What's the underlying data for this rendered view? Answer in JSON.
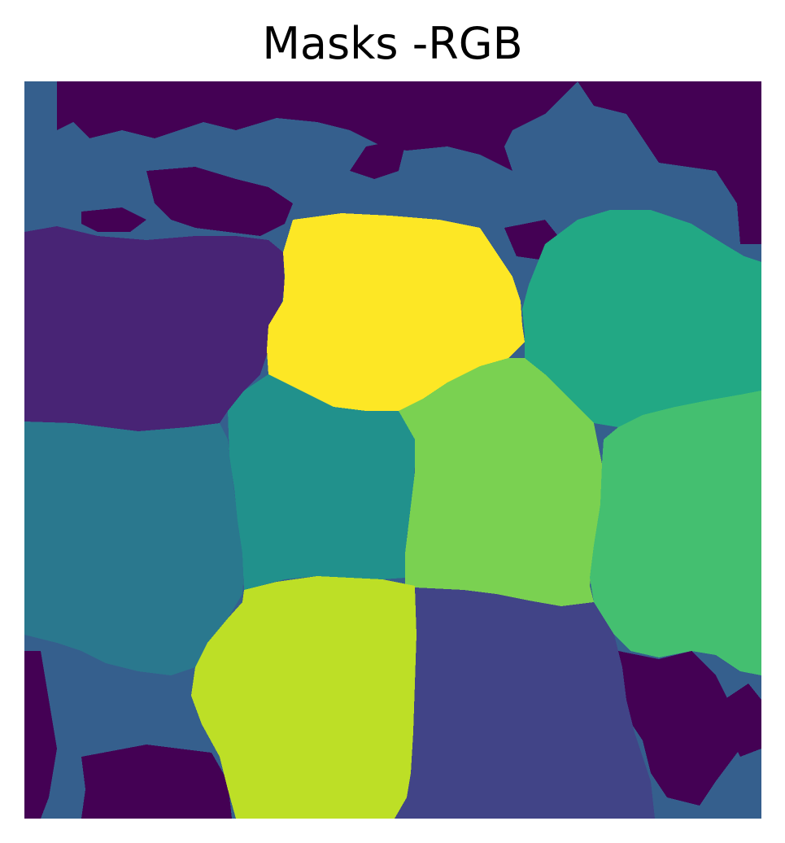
{
  "title": "Masks -RGB",
  "image": {
    "kind": "segmentation-mask",
    "colormap": "viridis",
    "segment_colors": {
      "background-dark": "#440154",
      "background-blue": "#355F8D",
      "region-purple": "#482475",
      "region-indigo": "#414487",
      "region-teal": "#2A788E",
      "region-cyan": "#21918C",
      "region-green": "#22A884",
      "region-lightgreen": "#44BF70",
      "region-lime": "#7AD151",
      "region-yellowgreen": "#BDDF26",
      "region-yellow": "#FDE725"
    }
  }
}
